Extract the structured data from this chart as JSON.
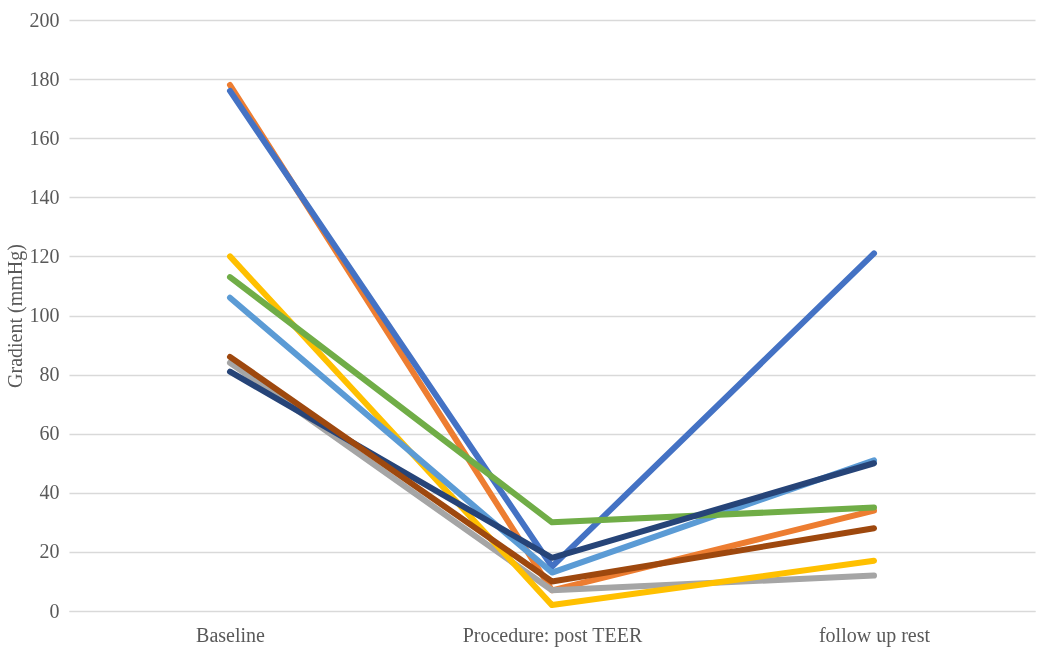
{
  "chart_data": {
    "type": "line",
    "ylabel": "Gradient (mmHg)",
    "categories": [
      "Baseline",
      "Procedure: post TEER",
      "follow up rest"
    ],
    "ylim": [
      0,
      200
    ],
    "yticks": [
      0,
      20,
      40,
      60,
      80,
      100,
      120,
      140,
      160,
      180,
      200
    ],
    "grid": "y",
    "marker": "none",
    "line_style": "solid",
    "series": [
      {
        "color": "#ed7d31",
        "values": [
          178,
          7,
          34
        ]
      },
      {
        "color": "#4472c4",
        "values": [
          176,
          15,
          121
        ]
      },
      {
        "color": "#a5a5a5",
        "values": [
          84,
          7,
          12
        ]
      },
      {
        "color": "#ffc000",
        "values": [
          120,
          2,
          17
        ]
      },
      {
        "color": "#5b9bd5",
        "values": [
          106,
          13,
          51
        ]
      },
      {
        "color": "#70ad47",
        "values": [
          113,
          30,
          35
        ]
      },
      {
        "color": "#264478",
        "values": [
          81,
          18,
          50
        ]
      },
      {
        "color": "#9e480e",
        "values": [
          86,
          10,
          28
        ]
      }
    ]
  }
}
